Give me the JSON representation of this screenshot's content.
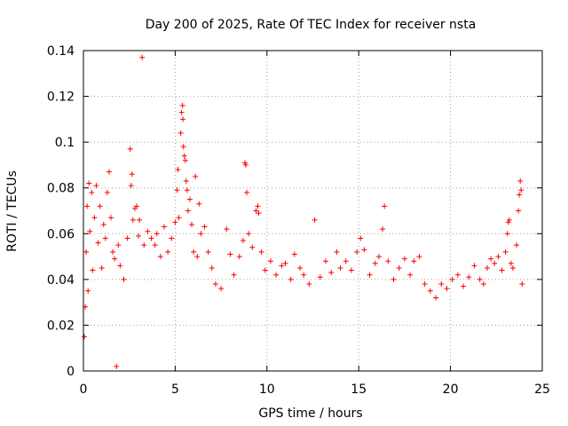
{
  "chart_data": {
    "type": "scatter",
    "title": "Day 200 of 2025, Rate Of TEC Index for receiver nsta",
    "xlabel": "GPS time / hours",
    "ylabel": "ROTI / TECUs",
    "xlim": [
      0,
      25
    ],
    "ylim": [
      0,
      0.14
    ],
    "xticks": [
      0,
      5,
      10,
      15,
      20,
      25
    ],
    "yticks": [
      0,
      0.02,
      0.04,
      0.06,
      0.08,
      0.1,
      0.12,
      0.14
    ],
    "xtick_labels": [
      "0",
      "5",
      "10",
      "15",
      "20",
      "25"
    ],
    "ytick_labels": [
      "0",
      "0.02",
      "0.04",
      "0.06",
      "0.08",
      "0.1",
      "0.12",
      "0.14"
    ],
    "grid": true,
    "marker": "plus",
    "color": "#ff0000",
    "series": [
      {
        "name": "ROTI",
        "points": [
          [
            0.05,
            0.015
          ],
          [
            0.1,
            0.028
          ],
          [
            0.15,
            0.052
          ],
          [
            0.2,
            0.072
          ],
          [
            0.25,
            0.035
          ],
          [
            0.3,
            0.082
          ],
          [
            0.35,
            0.061
          ],
          [
            0.45,
            0.078
          ],
          [
            0.5,
            0.044
          ],
          [
            0.6,
            0.067
          ],
          [
            0.7,
            0.081
          ],
          [
            0.8,
            0.056
          ],
          [
            0.9,
            0.072
          ],
          [
            1.0,
            0.045
          ],
          [
            1.1,
            0.064
          ],
          [
            1.2,
            0.058
          ],
          [
            1.3,
            0.078
          ],
          [
            1.4,
            0.087
          ],
          [
            1.5,
            0.067
          ],
          [
            1.6,
            0.052
          ],
          [
            1.7,
            0.049
          ],
          [
            1.8,
            0.002
          ],
          [
            1.9,
            0.055
          ],
          [
            2.0,
            0.046
          ],
          [
            2.2,
            0.04
          ],
          [
            2.4,
            0.058
          ],
          [
            2.55,
            0.097
          ],
          [
            2.6,
            0.081
          ],
          [
            2.65,
            0.086
          ],
          [
            2.7,
            0.066
          ],
          [
            2.8,
            0.071
          ],
          [
            2.9,
            0.072
          ],
          [
            3.0,
            0.059
          ],
          [
            3.05,
            0.066
          ],
          [
            3.2,
            0.137
          ],
          [
            3.3,
            0.055
          ],
          [
            3.5,
            0.061
          ],
          [
            3.7,
            0.058
          ],
          [
            3.9,
            0.055
          ],
          [
            4.0,
            0.06
          ],
          [
            4.2,
            0.05
          ],
          [
            4.4,
            0.063
          ],
          [
            4.6,
            0.052
          ],
          [
            4.8,
            0.058
          ],
          [
            5.0,
            0.065
          ],
          [
            5.1,
            0.079
          ],
          [
            5.15,
            0.088
          ],
          [
            5.2,
            0.067
          ],
          [
            5.3,
            0.104
          ],
          [
            5.35,
            0.113
          ],
          [
            5.4,
            0.116
          ],
          [
            5.42,
            0.11
          ],
          [
            5.45,
            0.098
          ],
          [
            5.5,
            0.094
          ],
          [
            5.55,
            0.092
          ],
          [
            5.6,
            0.083
          ],
          [
            5.65,
            0.079
          ],
          [
            5.7,
            0.07
          ],
          [
            5.8,
            0.075
          ],
          [
            5.9,
            0.064
          ],
          [
            6.0,
            0.052
          ],
          [
            6.1,
            0.085
          ],
          [
            6.2,
            0.05
          ],
          [
            6.3,
            0.073
          ],
          [
            6.4,
            0.06
          ],
          [
            6.6,
            0.063
          ],
          [
            6.8,
            0.052
          ],
          [
            7.0,
            0.045
          ],
          [
            7.2,
            0.038
          ],
          [
            7.5,
            0.036
          ],
          [
            7.8,
            0.062
          ],
          [
            8.0,
            0.051
          ],
          [
            8.2,
            0.042
          ],
          [
            8.5,
            0.05
          ],
          [
            8.7,
            0.057
          ],
          [
            8.8,
            0.091
          ],
          [
            8.85,
            0.09
          ],
          [
            8.9,
            0.078
          ],
          [
            9.0,
            0.06
          ],
          [
            9.2,
            0.054
          ],
          [
            9.4,
            0.07
          ],
          [
            9.5,
            0.072
          ],
          [
            9.55,
            0.069
          ],
          [
            9.7,
            0.052
          ],
          [
            9.9,
            0.044
          ],
          [
            10.2,
            0.048
          ],
          [
            10.5,
            0.042
          ],
          [
            10.8,
            0.046
          ],
          [
            11.0,
            0.047
          ],
          [
            11.3,
            0.04
          ],
          [
            11.5,
            0.051
          ],
          [
            11.8,
            0.045
          ],
          [
            12.0,
            0.042
          ],
          [
            12.3,
            0.038
          ],
          [
            12.6,
            0.066
          ],
          [
            12.9,
            0.041
          ],
          [
            13.2,
            0.048
          ],
          [
            13.5,
            0.043
          ],
          [
            13.8,
            0.052
          ],
          [
            14.0,
            0.045
          ],
          [
            14.3,
            0.048
          ],
          [
            14.6,
            0.044
          ],
          [
            14.9,
            0.052
          ],
          [
            15.1,
            0.058
          ],
          [
            15.3,
            0.053
          ],
          [
            15.6,
            0.042
          ],
          [
            15.9,
            0.047
          ],
          [
            16.1,
            0.05
          ],
          [
            16.3,
            0.062
          ],
          [
            16.4,
            0.072
          ],
          [
            16.6,
            0.048
          ],
          [
            16.9,
            0.04
          ],
          [
            17.2,
            0.045
          ],
          [
            17.5,
            0.049
          ],
          [
            17.8,
            0.042
          ],
          [
            18.0,
            0.048
          ],
          [
            18.3,
            0.05
          ],
          [
            18.6,
            0.038
          ],
          [
            18.9,
            0.035
          ],
          [
            19.2,
            0.032
          ],
          [
            19.5,
            0.038
          ],
          [
            19.8,
            0.036
          ],
          [
            20.1,
            0.04
          ],
          [
            20.4,
            0.042
          ],
          [
            20.7,
            0.037
          ],
          [
            21.0,
            0.041
          ],
          [
            21.3,
            0.046
          ],
          [
            21.6,
            0.04
          ],
          [
            21.8,
            0.038
          ],
          [
            22.0,
            0.045
          ],
          [
            22.2,
            0.049
          ],
          [
            22.4,
            0.047
          ],
          [
            22.6,
            0.05
          ],
          [
            22.8,
            0.044
          ],
          [
            23.0,
            0.052
          ],
          [
            23.1,
            0.06
          ],
          [
            23.15,
            0.065
          ],
          [
            23.2,
            0.066
          ],
          [
            23.3,
            0.047
          ],
          [
            23.4,
            0.045
          ],
          [
            23.6,
            0.055
          ],
          [
            23.7,
            0.07
          ],
          [
            23.75,
            0.077
          ],
          [
            23.8,
            0.083
          ],
          [
            23.85,
            0.079
          ],
          [
            23.9,
            0.038
          ]
        ]
      }
    ]
  }
}
